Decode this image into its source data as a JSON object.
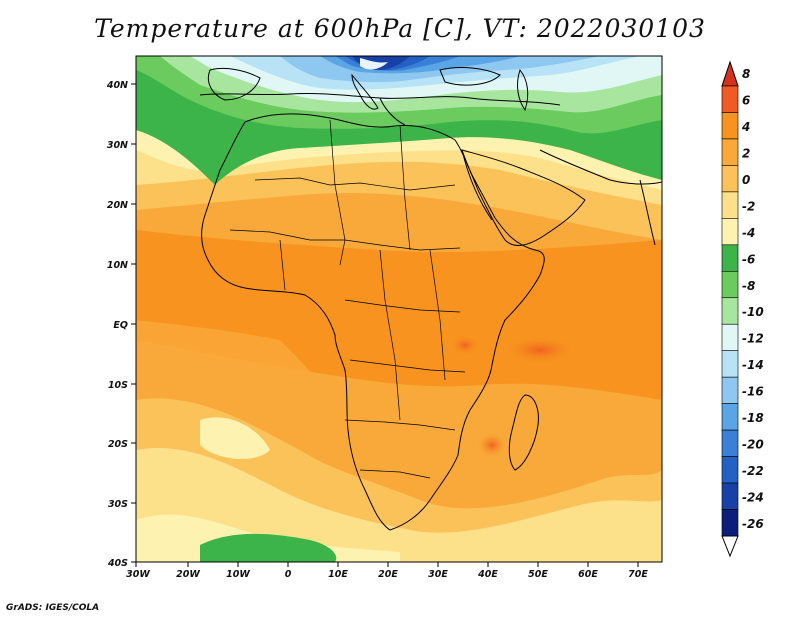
{
  "title": "Temperature at 600hPa [C], VT: 2022030103",
  "credit": "GrADS: IGES/COLA",
  "map": {
    "lon_range": [
      -30,
      75
    ],
    "lat_range": [
      -40,
      45
    ],
    "lat_labels": [
      "40N",
      "30N",
      "20N",
      "10N",
      "EQ",
      "10S",
      "20S",
      "30S",
      "40S"
    ],
    "lon_labels": [
      "30W",
      "20W",
      "10W",
      "0",
      "10E",
      "20E",
      "30E",
      "40E",
      "50E",
      "60E",
      "70E"
    ]
  },
  "colorbar": {
    "labels": [
      "8",
      "6",
      "4",
      "2",
      "0",
      "-2",
      "-4",
      "-6",
      "-8",
      "-10",
      "-12",
      "-14",
      "-16",
      "-18",
      "-20",
      "-22",
      "-24",
      "-26"
    ],
    "colors": [
      "#d7301f",
      "#f15a22",
      "#f7931e",
      "#f9a93a",
      "#fbc25a",
      "#fde08a",
      "#fdf2b0",
      "#3cb44a",
      "#6ccb5f",
      "#a8e6a0",
      "#e0f7f5",
      "#b8e3f7",
      "#8ec8f0",
      "#5aa5e6",
      "#3a80d6",
      "#2461c4",
      "#1841a8",
      "#0a1f7a",
      "#ffffff"
    ]
  }
}
